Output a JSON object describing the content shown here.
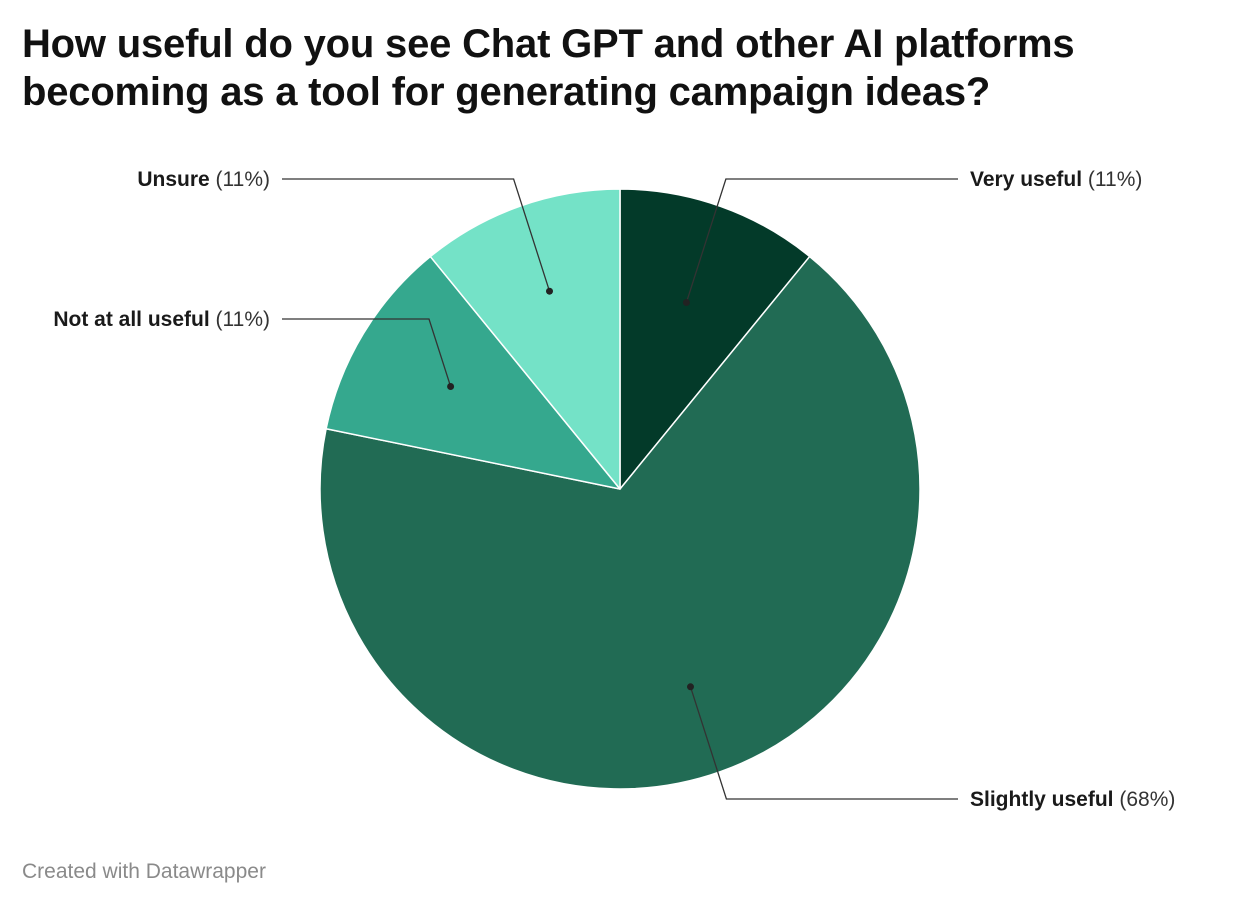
{
  "chart_data": {
    "type": "pie",
    "title": "How useful do you see Chat GPT and other AI platforms becoming as a tool for generating campaign ideas?",
    "slices": [
      {
        "label": "Very useful",
        "value": 11,
        "display": "(11%)",
        "color": "#033a29"
      },
      {
        "label": "Slightly useful",
        "value": 68,
        "display": "(68%)",
        "color": "#216b54"
      },
      {
        "label": "Not at all useful",
        "value": 11,
        "display": "(11%)",
        "color": "#35a88e"
      },
      {
        "label": "Unsure",
        "value": 11,
        "display": "(11%)",
        "color": "#74e2c7"
      }
    ],
    "start_angle": "12 o'clock",
    "direction": "clockwise"
  },
  "footer": {
    "credit": "Created with Datawrapper"
  }
}
